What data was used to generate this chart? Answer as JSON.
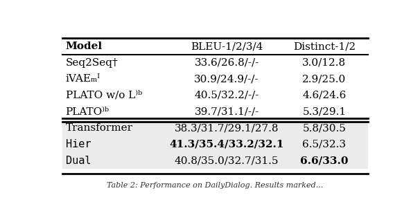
{
  "headers": [
    "Model",
    "BLEU-1/2/3/4",
    "Distinct-1/2"
  ],
  "rows_group1": [
    [
      "Seq2Seq†",
      "33.6/26.8/-/-",
      "3.0/12.8"
    ],
    [
      "iVAEₘᴵ",
      "30.9/24.9/-/-",
      "2.9/25.0"
    ],
    [
      "PLATO w/o L⁾ᵇ",
      "40.5/32.2/-/-",
      "4.6/24.6"
    ],
    [
      "PLATO⁾ᵇ",
      "39.7/31.1/-/-",
      "5.3/29.1"
    ]
  ],
  "rows_group2": [
    [
      "Transformer",
      "38.3/31.7/29.1/27.8",
      "5.8/30.5"
    ],
    [
      "Hier",
      "41.3/35.4/33.2/32.1",
      "6.5/32.3"
    ],
    [
      "Dual",
      "40.8/35.0/32.7/31.5",
      "6.6/33.0"
    ]
  ],
  "hier_bleu_bold": true,
  "dual_distinct_bold": true,
  "bg_color_group2": "#ebebeb",
  "font_size": 11,
  "caption": "Table 2: Performance on DailyDialog. Results marked..."
}
